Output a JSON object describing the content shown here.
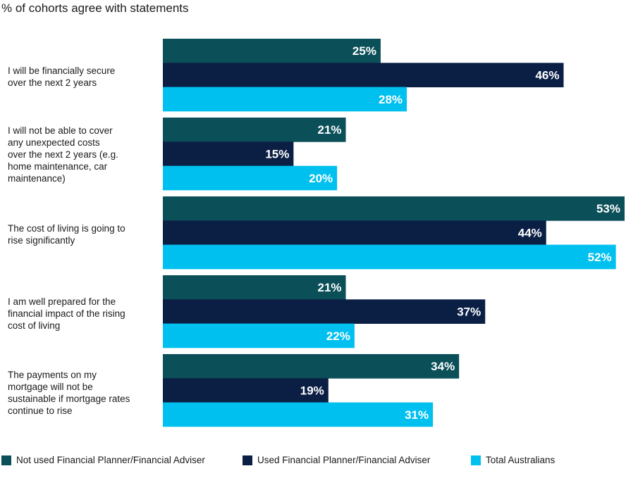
{
  "chart_data": {
    "type": "bar",
    "orientation": "horizontal",
    "title": "% of cohorts agree with statements",
    "categories": [
      "I will be financially secure over the next 2 years",
      "I will not be able to cover any unexpected costs over the next 2 years (e.g. home maintenance, car maintenance)",
      "The cost of living is going to rise significantly",
      "I am well prepared for the financial impact of the rising cost of living",
      "The payments on my mortgage will not be sustainable if mortgage rates continue to rise"
    ],
    "series": [
      {
        "name": "Not used Financial Planner/Financial Adviser",
        "color": "#0b4f59",
        "values": [
          25,
          21,
          53,
          21,
          34
        ]
      },
      {
        "name": "Used Financial Planner/Financial Adviser",
        "color": "#0b1f45",
        "values": [
          46,
          15,
          44,
          37,
          19
        ]
      },
      {
        "name": "Total Australians",
        "color": "#00c0f0",
        "values": [
          28,
          20,
          52,
          22,
          31
        ]
      }
    ],
    "value_suffix": "%",
    "xlim": [
      0,
      53
    ],
    "grid": false,
    "legend_position": "bottom"
  },
  "category_lines": [
    [
      "I will be financially secure",
      "over the next 2 years"
    ],
    [
      "I will not be able to cover",
      "any unexpected costs",
      "over the next 2 years (e.g.",
      "home maintenance, car",
      "maintenance)"
    ],
    [
      "The cost of living is going to",
      "rise significantly"
    ],
    [
      "I am well prepared for the",
      "financial impact of the rising",
      "cost of living"
    ],
    [
      "The payments on my",
      "mortgage will not be",
      "sustainable if mortgage rates",
      "continue to rise"
    ]
  ]
}
